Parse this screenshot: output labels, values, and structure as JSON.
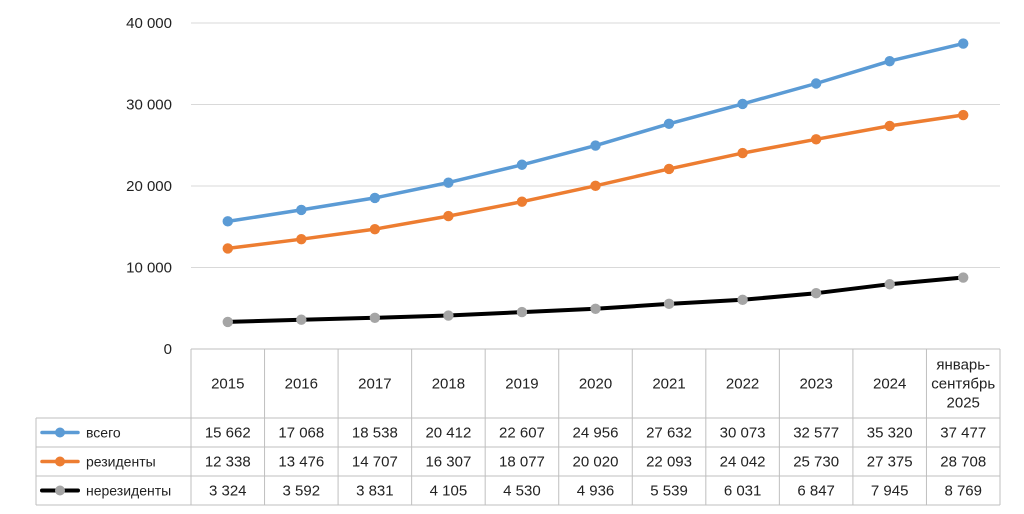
{
  "chart_data": {
    "type": "line",
    "title": "",
    "xlabel": "",
    "ylabel": "",
    "ylim": [
      0,
      40000
    ],
    "yticks": [
      0,
      10000,
      20000,
      30000,
      40000
    ],
    "ytick_labels": [
      "0",
      "10 000",
      "20 000",
      "30 000",
      "40 000"
    ],
    "grid": true,
    "legend": "data-table-left",
    "categories": [
      "2015",
      "2016",
      "2017",
      "2018",
      "2019",
      "2020",
      "2021",
      "2022",
      "2023",
      "2024",
      "январь-сентябрь 2025"
    ],
    "category_lines": [
      [
        "2015"
      ],
      [
        "2016"
      ],
      [
        "2017"
      ],
      [
        "2018"
      ],
      [
        "2019"
      ],
      [
        "2020"
      ],
      [
        "2021"
      ],
      [
        "2022"
      ],
      [
        "2023"
      ],
      [
        "2024"
      ],
      [
        "январь-",
        "сентябрь",
        "2025"
      ]
    ],
    "series": [
      {
        "name": "всего",
        "line_color": "#5b9bd5",
        "marker_color": "#5b9bd5",
        "values": [
          15662,
          17068,
          18538,
          20412,
          22607,
          24956,
          27632,
          30073,
          32577,
          35320,
          37477
        ],
        "labels": [
          "15 662",
          "17 068",
          "18 538",
          "20 412",
          "22 607",
          "24 956",
          "27 632",
          "30 073",
          "32 577",
          "35 320",
          "37 477"
        ]
      },
      {
        "name": "резиденты",
        "line_color": "#ed7d31",
        "marker_color": "#ed7d31",
        "values": [
          12338,
          13476,
          14707,
          16307,
          18077,
          20020,
          22093,
          24042,
          25730,
          27375,
          28708
        ],
        "labels": [
          "12 338",
          "13 476",
          "14 707",
          "16 307",
          "18 077",
          "20 020",
          "22 093",
          "24 042",
          "25 730",
          "27 375",
          "28 708"
        ]
      },
      {
        "name": "нерезиденты",
        "line_color": "#000000",
        "marker_color": "#a5a5a5",
        "values": [
          3324,
          3592,
          3831,
          4105,
          4530,
          4936,
          5539,
          6031,
          6847,
          7945,
          8769
        ],
        "labels": [
          "3 324",
          "3 592",
          "3 831",
          "4 105",
          "4 530",
          "4 936",
          "5 539",
          "6 031",
          "6 847",
          "7 945",
          "8 769"
        ]
      }
    ]
  }
}
